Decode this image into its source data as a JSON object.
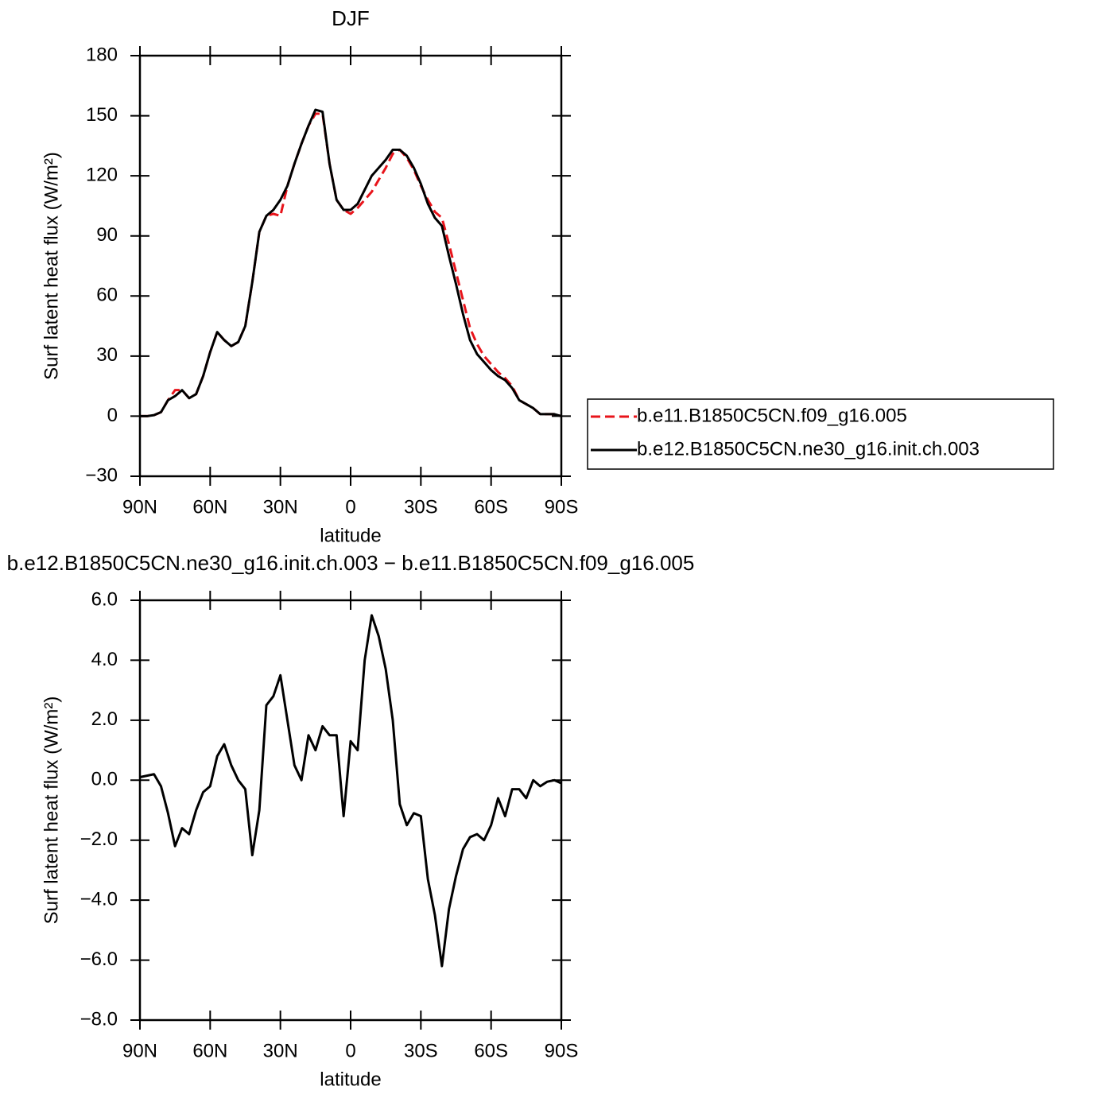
{
  "chart_data": [
    {
      "type": "line",
      "title": "DJF",
      "xlabel": "latitude",
      "ylabel": "Surf latent heat flux (W/m²)",
      "x": [
        90,
        87,
        84,
        81,
        78,
        75,
        72,
        69,
        66,
        63,
        60,
        57,
        54,
        51,
        48,
        45,
        42,
        39,
        36,
        33,
        30,
        27,
        24,
        21,
        18,
        15,
        12,
        9,
        6,
        3,
        0,
        -3,
        -6,
        -9,
        -12,
        -15,
        -18,
        -21,
        -24,
        -27,
        -30,
        -33,
        -36,
        -39,
        -42,
        -45,
        -48,
        -51,
        -54,
        -57,
        -60,
        -63,
        -66,
        -69,
        -72,
        -75,
        -78,
        -81,
        -84,
        -87,
        -90
      ],
      "xlim": [
        90,
        -90
      ],
      "xticks": [
        {
          "value": 90,
          "label": "90N"
        },
        {
          "value": 60,
          "label": "60N"
        },
        {
          "value": 30,
          "label": "30N"
        },
        0,
        {
          "value": -30,
          "label": "30S"
        },
        {
          "value": -60,
          "label": "60S"
        },
        {
          "value": -90,
          "label": "90S"
        }
      ],
      "ylim": [
        -30,
        180
      ],
      "yticks": [
        {
          "value": -30,
          "label": "−30"
        },
        0,
        30,
        60,
        90,
        120,
        150,
        180
      ],
      "legend": "outside-right",
      "series": [
        {
          "name": "b.e11.B1850C5CN.f09_g16.005",
          "color": "#e8141b",
          "dash": true,
          "values": [
            0,
            0,
            0.5,
            2,
            8,
            13,
            13,
            9,
            11,
            20,
            32,
            42,
            38,
            35,
            37,
            45,
            67,
            92,
            100,
            101,
            100,
            115,
            126,
            136,
            145,
            151,
            151,
            126,
            108,
            103,
            101,
            104,
            108,
            112,
            118,
            124,
            131,
            133,
            129,
            123,
            115,
            108,
            102,
            99,
            86,
            72,
            58,
            44,
            36,
            30,
            26,
            22,
            19,
            15,
            8,
            6,
            4,
            1,
            1,
            1,
            0
          ]
        },
        {
          "name": "b.e12.B1850C5CN.ne30_g16.init.ch.003",
          "color": "#000000",
          "dash": false,
          "values": [
            0,
            0,
            0.5,
            2,
            8,
            10,
            13,
            9,
            11,
            20,
            32,
            42,
            38,
            35,
            37,
            45,
            67,
            92,
            100,
            103,
            108,
            115,
            126,
            136,
            145,
            153,
            152,
            126,
            108,
            103,
            103,
            106,
            113,
            120,
            124,
            128,
            133,
            133,
            130,
            124,
            116,
            106,
            99,
            95,
            80,
            66,
            51,
            38,
            31,
            27,
            23,
            20,
            18,
            14,
            8,
            6,
            4,
            1,
            1,
            1,
            0
          ]
        }
      ]
    },
    {
      "type": "line",
      "title": "b.e12.B1850C5CN.ne30_g16.init.ch.003 − b.e11.B1850C5CN.f09_g16.005",
      "xlabel": "latitude",
      "ylabel": "Surf latent heat flux (W/m²)",
      "x": [
        90,
        87,
        84,
        81,
        78,
        75,
        72,
        69,
        66,
        63,
        60,
        57,
        54,
        51,
        48,
        45,
        42,
        39,
        36,
        33,
        30,
        27,
        24,
        21,
        18,
        15,
        12,
        9,
        6,
        3,
        0,
        -3,
        -6,
        -9,
        -12,
        -15,
        -18,
        -21,
        -24,
        -27,
        -30,
        -33,
        -36,
        -39,
        -42,
        -45,
        -48,
        -51,
        -54,
        -57,
        -60,
        -63,
        -66,
        -69,
        -72,
        -75,
        -78,
        -81,
        -84,
        -87,
        -90
      ],
      "xlim": [
        90,
        -90
      ],
      "xticks": [
        {
          "value": 90,
          "label": "90N"
        },
        {
          "value": 60,
          "label": "60N"
        },
        {
          "value": 30,
          "label": "30N"
        },
        0,
        {
          "value": -30,
          "label": "30S"
        },
        {
          "value": -60,
          "label": "60S"
        },
        {
          "value": -90,
          "label": "90S"
        }
      ],
      "ylim": [
        -8,
        6
      ],
      "yticks": [
        {
          "value": -8,
          "label": "−8.0"
        },
        {
          "value": -6,
          "label": "−6.0"
        },
        {
          "value": -4,
          "label": "−4.0"
        },
        {
          "value": -2,
          "label": "−2.0"
        },
        {
          "value": 0,
          "label": "0.0"
        },
        {
          "value": 2,
          "label": "2.0"
        },
        {
          "value": 4,
          "label": "4.0"
        },
        {
          "value": 6,
          "label": "6.0"
        }
      ],
      "series": [
        {
          "color": "#000000",
          "values": [
            0.1,
            0.15,
            0.2,
            -0.2,
            -1.1,
            -2.2,
            -1.6,
            -1.8,
            -1.0,
            -0.4,
            -0.2,
            0.8,
            1.2,
            0.5,
            0.0,
            -0.3,
            -2.5,
            -1.0,
            2.5,
            2.8,
            3.5,
            2.0,
            0.5,
            0.0,
            1.5,
            1.0,
            1.8,
            1.5,
            1.5,
            -1.2,
            1.3,
            1.0,
            4.0,
            5.5,
            4.8,
            3.7,
            2.0,
            -0.8,
            -1.5,
            -1.1,
            -1.2,
            -3.3,
            -4.5,
            -6.2,
            -4.3,
            -3.2,
            -2.3,
            -1.9,
            -1.8,
            -2.0,
            -1.5,
            -0.6,
            -1.2,
            -0.3,
            -0.3,
            -0.6,
            0.0,
            -0.2,
            -0.05,
            0.0,
            -0.1
          ]
        }
      ]
    }
  ]
}
